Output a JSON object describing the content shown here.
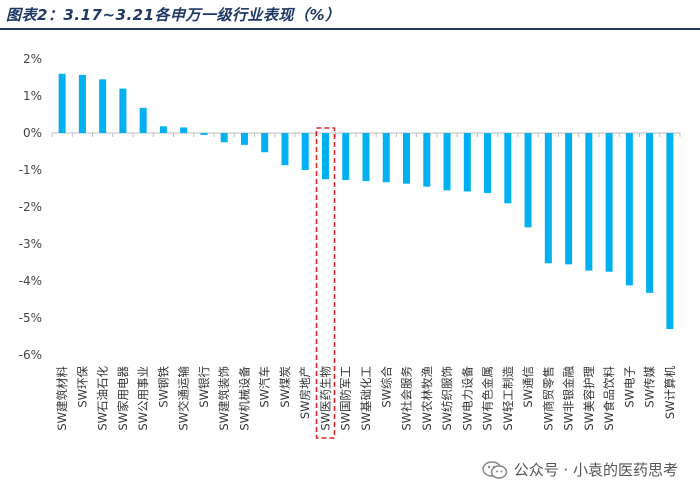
{
  "title": "图表2：3.17~3.21各申万一级行业表现（%）",
  "watermark": "公众号 · 小袁的医药思考",
  "chart_data": {
    "type": "bar",
    "title": "图表2：3.17~3.21各申万一级行业表现（%）",
    "xlabel": "",
    "ylabel": "",
    "ylim": [
      -6,
      2
    ],
    "yticks": [
      "2%",
      "1%",
      "0%",
      "-1%",
      "-2%",
      "-3%",
      "-4%",
      "-5%",
      "-6%"
    ],
    "categories": [
      "SW建筑材料",
      "SW环保",
      "SW石油石化",
      "SW家用电器",
      "SW公用事业",
      "SW钢铁",
      "SW交通运输",
      "SW银行",
      "SW建筑装饰",
      "SW机械设备",
      "SW汽车",
      "SW煤炭",
      "SW房地产",
      "SW医药生物",
      "SW国防军工",
      "SW基础化工",
      "SW综合",
      "SW社会服务",
      "SW农林牧渔",
      "SW纺织服饰",
      "SW电力设备",
      "SW有色金属",
      "SW轻工制造",
      "SW通信",
      "SW商贸零售",
      "SW非银金融",
      "SW美容护理",
      "SW食品饮料",
      "SW电子",
      "SW传媒",
      "SW计算机"
    ],
    "values": [
      1.6,
      1.57,
      1.45,
      1.2,
      0.68,
      0.18,
      0.15,
      -0.05,
      -0.25,
      -0.32,
      -0.52,
      -0.87,
      -1.0,
      -1.25,
      -1.27,
      -1.3,
      -1.33,
      -1.37,
      -1.45,
      -1.55,
      -1.58,
      -1.62,
      -1.9,
      -2.55,
      -3.52,
      -3.55,
      -3.72,
      -3.75,
      -4.12,
      -4.32,
      -5.3
    ],
    "bar_color": "#00b0f0",
    "highlight_category": "SW医药生物",
    "highlight_color": "#e02020"
  }
}
